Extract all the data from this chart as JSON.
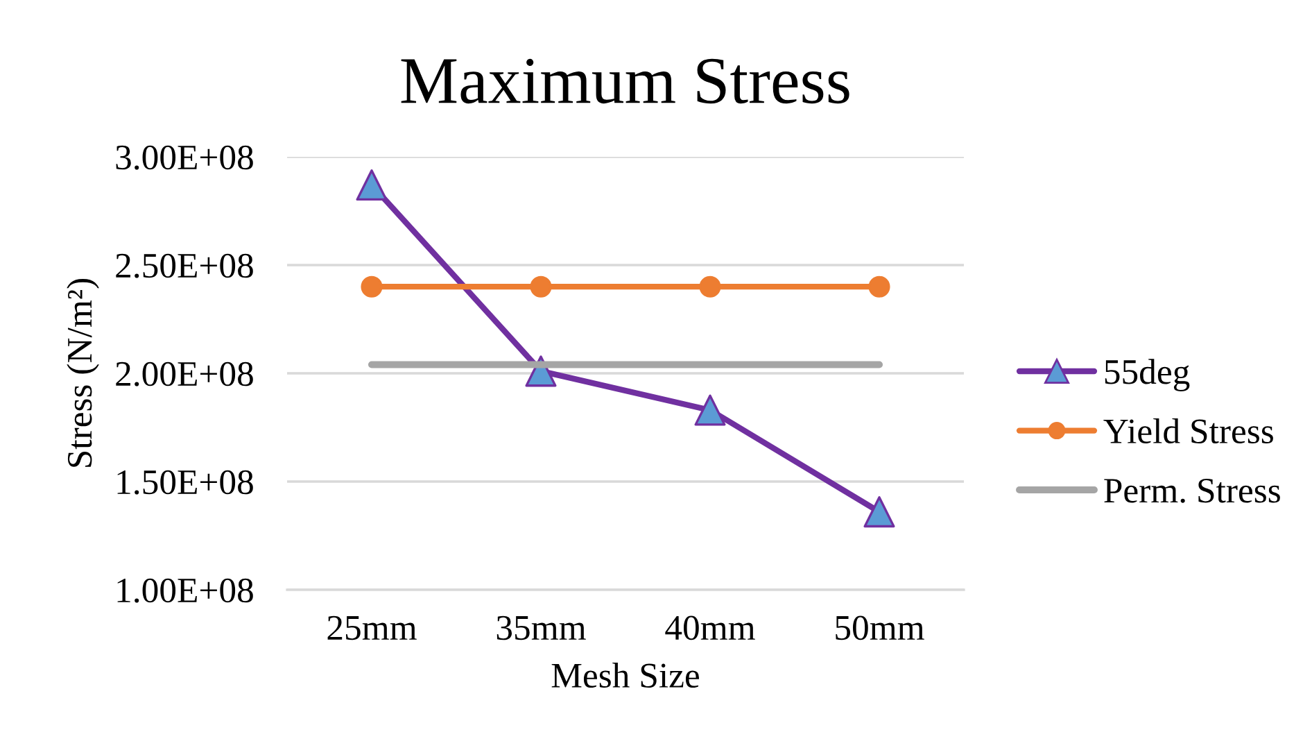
{
  "chart_data": {
    "type": "line",
    "title": "Maximum Stress",
    "xlabel": "Mesh Size",
    "ylabel": "Stress (N/m²)",
    "categories": [
      "25mm",
      "35mm",
      "40mm",
      "50mm"
    ],
    "series": [
      {
        "name": "55deg",
        "color": "#7030a0",
        "colors": [
          "#5b9bd5",
          "#5b9bd5",
          "#5b9bd5",
          "#5b9bd5"
        ],
        "marker": "triangle",
        "values": [
          287000000,
          201000000,
          183000000,
          136000000
        ]
      },
      {
        "name": "Yield Stress",
        "color": "#ed7d31",
        "marker": "circle",
        "values": [
          240000000,
          240000000,
          240000000,
          240000000
        ]
      },
      {
        "name": "Perm. Stress",
        "color": "#a5a5a5",
        "marker": "none",
        "values": [
          204000000,
          204000000,
          204000000,
          204000000
        ]
      }
    ],
    "ylim": [
      100000000,
      300000000
    ],
    "yticks": [
      {
        "value": 100000000,
        "label": "1.00E+08"
      },
      {
        "value": 150000000,
        "label": "1.50E+08"
      },
      {
        "value": 200000000,
        "label": "2.00E+08"
      },
      {
        "value": 250000000,
        "label": "2.50E+08"
      },
      {
        "value": 300000000,
        "label": "3.00E+08"
      }
    ],
    "grid": "y",
    "legend": "right",
    "line_style": "solid"
  }
}
